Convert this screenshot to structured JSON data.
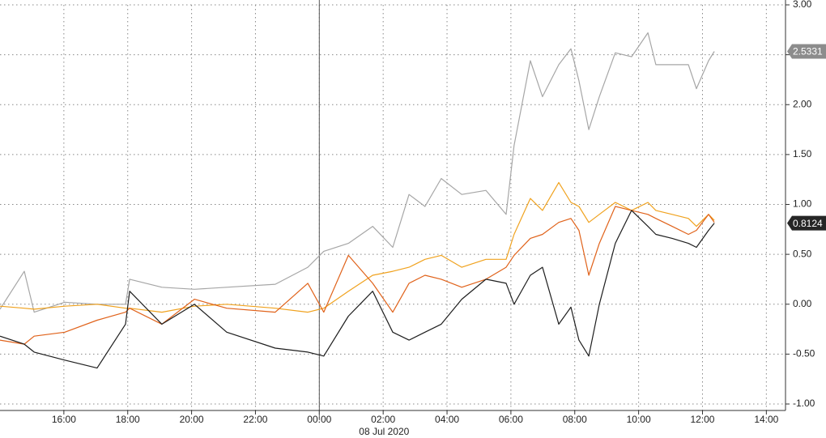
{
  "chart_data": {
    "type": "line",
    "x": [
      0,
      0.76,
      1.07,
      2.03,
      3.04,
      3.93,
      4.06,
      5.07,
      6.09,
      7.1,
      8.62,
      9.64,
      10.14,
      10.91,
      11.67,
      12.3,
      12.81,
      13.31,
      13.82,
      14.46,
      15.22,
      15.85,
      16.1,
      16.61,
      16.99,
      17.5,
      17.88,
      18.13,
      18.44,
      18.77,
      19.27,
      19.78,
      20.29,
      20.54,
      21.05,
      21.56,
      21.81,
      22.19,
      22.37
    ],
    "series": [
      {
        "color": "#a6a6a6",
        "values": [
          -0.05,
          0.33,
          -0.08,
          0.02,
          0.0,
          0.0,
          0.25,
          0.17,
          0.15,
          0.17,
          0.2,
          0.37,
          0.53,
          0.61,
          0.78,
          0.57,
          1.1,
          0.98,
          1.26,
          1.1,
          1.14,
          0.9,
          1.59,
          2.44,
          2.08,
          2.4,
          2.56,
          2.24,
          1.75,
          2.08,
          2.52,
          2.48,
          2.72,
          2.4,
          2.4,
          2.4,
          2.16,
          2.44,
          2.5331
        ]
      },
      {
        "color": "#f0a21e",
        "values": [
          -0.02,
          -0.04,
          -0.05,
          -0.02,
          0.0,
          -0.04,
          -0.04,
          -0.08,
          -0.02,
          0.0,
          -0.04,
          -0.08,
          -0.04,
          0.13,
          0.29,
          0.33,
          0.37,
          0.45,
          0.49,
          0.37,
          0.45,
          0.45,
          0.7,
          1.06,
          0.94,
          1.22,
          1.02,
          0.98,
          0.82,
          0.9,
          1.02,
          0.94,
          1.02,
          0.94,
          0.9,
          0.86,
          0.78,
          0.9,
          0.84
        ]
      },
      {
        "color": "#e0621a",
        "values": [
          -0.36,
          -0.4,
          -0.32,
          -0.28,
          -0.16,
          -0.08,
          -0.04,
          -0.2,
          0.05,
          -0.04,
          -0.08,
          0.21,
          -0.08,
          0.49,
          0.21,
          -0.08,
          0.21,
          0.29,
          0.25,
          0.17,
          0.25,
          0.37,
          0.49,
          0.66,
          0.7,
          0.82,
          0.86,
          0.74,
          0.29,
          0.61,
          0.98,
          0.94,
          0.9,
          0.86,
          0.78,
          0.7,
          0.74,
          0.9,
          0.82
        ]
      },
      {
        "color": "#1e1e1e",
        "values": [
          -0.32,
          -0.4,
          -0.48,
          -0.56,
          -0.64,
          -0.2,
          0.13,
          -0.2,
          0.0,
          -0.28,
          -0.44,
          -0.48,
          -0.52,
          -0.12,
          0.13,
          -0.28,
          -0.36,
          -0.28,
          -0.2,
          0.05,
          0.25,
          0.21,
          0.0,
          0.29,
          0.37,
          -0.2,
          -0.03,
          -0.36,
          -0.52,
          0.0,
          0.61,
          0.94,
          0.78,
          0.7,
          0.66,
          0.61,
          0.57,
          0.74,
          0.8124
        ]
      }
    ],
    "xlim": [
      0,
      24.6
    ],
    "ylim": [
      -1,
      3
    ],
    "xticks": [
      {
        "value": 2,
        "label": "16:00"
      },
      {
        "value": 4,
        "label": "18:00"
      },
      {
        "value": 6,
        "label": "20:00"
      },
      {
        "value": 8,
        "label": "22:00"
      },
      {
        "value": 10,
        "label": "00:00"
      },
      {
        "value": 12,
        "label": "02:00"
      },
      {
        "value": 14,
        "label": "04:00"
      },
      {
        "value": 16,
        "label": "06:00"
      },
      {
        "value": 18,
        "label": "08:00"
      },
      {
        "value": 20,
        "label": "10:00"
      },
      {
        "value": 22,
        "label": "12:00"
      },
      {
        "value": 24,
        "label": "14:00"
      }
    ],
    "yticks": [
      {
        "value": 3,
        "label": "3.00"
      },
      {
        "value": 2.5,
        "label": "2.50"
      },
      {
        "value": 2,
        "label": "2.00"
      },
      {
        "value": 1.5,
        "label": "1.50"
      },
      {
        "value": 1,
        "label": "1.00"
      },
      {
        "value": 0.5,
        "label": "0.50"
      },
      {
        "value": 0,
        "label": "0.00"
      },
      {
        "value": -0.5,
        "label": "-0.50"
      },
      {
        "value": -1,
        "label": "-1.00"
      }
    ],
    "date_marker": {
      "value": 10,
      "label": "08 Jul 2020"
    },
    "price_tags": [
      {
        "value": 2.5331,
        "label": "2.5331",
        "color": "#8c8c8c"
      },
      {
        "value": 0.8124,
        "label": "0.8124",
        "color": "#262626"
      }
    ],
    "grid": true
  }
}
